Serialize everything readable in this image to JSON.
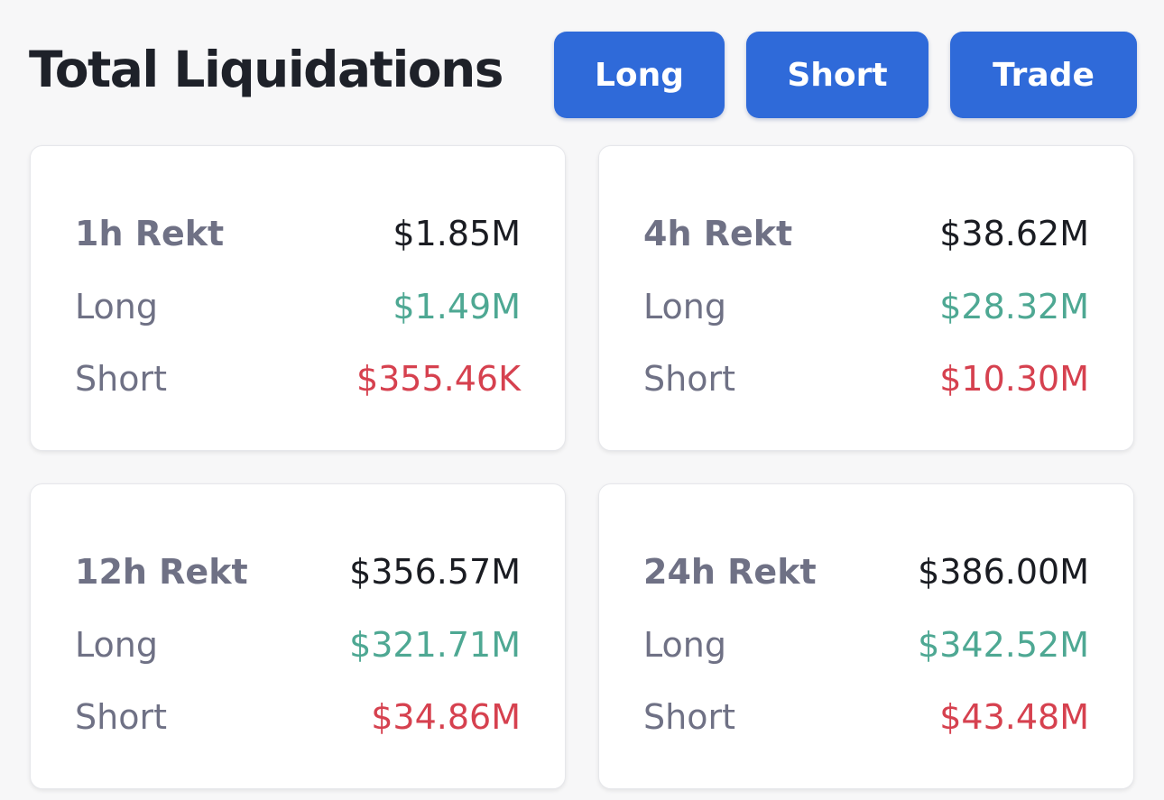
{
  "header": {
    "title": "Total Liquidations",
    "buttons": {
      "long": "Long",
      "short": "Short",
      "trade": "Trade"
    }
  },
  "colors": {
    "accent": "#2f6ad9",
    "long": "#4ea893",
    "short": "#d6414f"
  },
  "cards": [
    {
      "label": "1h Rekt",
      "total": "$1.85M",
      "long_label": "Long",
      "long": "$1.49M",
      "short_label": "Short",
      "short": "$355.46K"
    },
    {
      "label": "4h Rekt",
      "total": "$38.62M",
      "long_label": "Long",
      "long": "$28.32M",
      "short_label": "Short",
      "short": "$10.30M"
    },
    {
      "label": "12h Rekt",
      "total": "$356.57M",
      "long_label": "Long",
      "long": "$321.71M",
      "short_label": "Short",
      "short": "$34.86M"
    },
    {
      "label": "24h Rekt",
      "total": "$386.00M",
      "long_label": "Long",
      "long": "$342.52M",
      "short_label": "Short",
      "short": "$43.48M"
    }
  ]
}
